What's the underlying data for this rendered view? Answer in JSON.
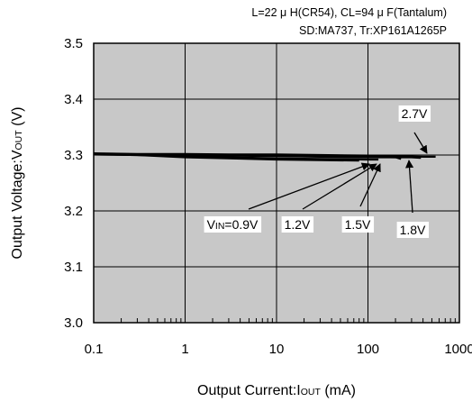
{
  "conditions": {
    "line1": "L=22 μ H(CR54), CL=94 μ F(Tantalum)",
    "line2": "SD:MA737, Tr:XP161A1265P"
  },
  "chart_data": {
    "type": "line",
    "xscale": "log",
    "xlim": [
      0.1,
      1000
    ],
    "ylim": [
      3.0,
      3.5
    ],
    "grid": true,
    "xticks": [
      "0.1",
      "1",
      "10",
      "100",
      "1000"
    ],
    "yticks": [
      "3.0",
      "3.1",
      "3.2",
      "3.3",
      "3.4",
      "3.5"
    ],
    "xlabel": "Output Current:IOUT (mA)",
    "ylabel": "Output Voltage:VOUT (V)",
    "series": [
      {
        "name": "VIN=0.9V",
        "x": [
          0.1,
          0.3,
          1,
          3,
          10,
          30,
          80
        ],
        "y": [
          3.301,
          3.3,
          3.296,
          3.294,
          3.292,
          3.291,
          3.29
        ]
      },
      {
        "name": "1.2V",
        "x": [
          0.1,
          0.3,
          1,
          3,
          10,
          30,
          100,
          130
        ],
        "y": [
          3.301,
          3.3,
          3.298,
          3.296,
          3.294,
          3.293,
          3.292,
          3.292
        ]
      },
      {
        "name": "1.5V",
        "x": [
          0.1,
          0.3,
          1,
          3,
          10,
          30,
          100,
          200,
          230
        ],
        "y": [
          3.302,
          3.301,
          3.3,
          3.299,
          3.298,
          3.297,
          3.296,
          3.296,
          3.293
        ]
      },
      {
        "name": "1.8V",
        "x": [
          0.1,
          0.3,
          1,
          3,
          10,
          30,
          100,
          200,
          300,
          380
        ],
        "y": [
          3.302,
          3.301,
          3.301,
          3.3,
          3.299,
          3.298,
          3.297,
          3.296,
          3.296,
          3.295
        ]
      },
      {
        "name": "2.7V",
        "x": [
          0.1,
          0.3,
          1,
          3,
          10,
          30,
          100,
          200,
          400,
          550
        ],
        "y": [
          3.303,
          3.302,
          3.302,
          3.301,
          3.301,
          3.3,
          3.299,
          3.298,
          3.297,
          3.297
        ]
      }
    ],
    "annotations": [
      {
        "main": "V",
        "sub": "IN",
        "rest": "=0.9V",
        "series": "VIN=0.9V"
      },
      {
        "text": "1.2V",
        "series": "1.2V"
      },
      {
        "text": "1.5V",
        "series": "1.5V"
      },
      {
        "text": "1.8V",
        "series": "1.8V"
      },
      {
        "text": "2.7V",
        "series": "2.7V"
      }
    ]
  }
}
